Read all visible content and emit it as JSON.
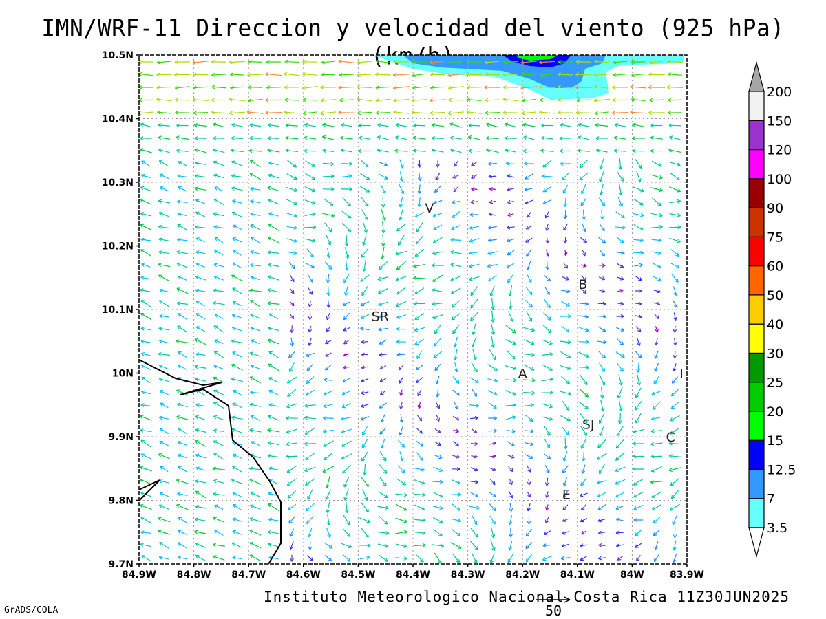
{
  "title": "IMN/WRF-11 Direccion y velocidad del viento (925 hPa)(km/h)",
  "credit": "Instituto Meteorologico Nacional Costa Rica 11Z30JUN2025",
  "software_credit": "GrADS/COLA",
  "reference_vector": {
    "value": "50"
  },
  "chart_data": {
    "type": "vector_field_map",
    "x_ticks": [
      "84.9W",
      "84.8W",
      "84.7W",
      "84.6W",
      "84.5W",
      "84.4W",
      "84.3W",
      "84.2W",
      "84.1W",
      "84W",
      "83.9W"
    ],
    "y_ticks": [
      "10.5N",
      "10.4N",
      "10.3N",
      "10.2N",
      "10.1N",
      "10N",
      "9.9N",
      "9.8N",
      "9.7N"
    ],
    "xlim": [
      -84.9,
      -83.9
    ],
    "ylim": [
      9.7,
      10.5
    ],
    "grid": true,
    "places": [
      {
        "label": "V",
        "lon": -84.37,
        "lat": 10.26
      },
      {
        "label": "B",
        "lon": -84.09,
        "lat": 10.14
      },
      {
        "label": "SR",
        "lon": -84.46,
        "lat": 10.09
      },
      {
        "label": "A",
        "lon": -84.2,
        "lat": 10.0
      },
      {
        "label": "I",
        "lon": -83.91,
        "lat": 10.0
      },
      {
        "label": "SJ",
        "lon": -84.08,
        "lat": 9.92
      },
      {
        "label": "C",
        "lon": -83.93,
        "lat": 9.9
      },
      {
        "label": "E",
        "lon": -84.12,
        "lat": 9.81
      }
    ],
    "colorbar": {
      "levels": [
        "3.5",
        "7",
        "12.5",
        "15",
        "20",
        "25",
        "30",
        "40",
        "50",
        "60",
        "75",
        "90",
        "100",
        "120",
        "150",
        "200"
      ],
      "colors": [
        "#66ffff",
        "#3399ff",
        "#0000ff",
        "#00ff00",
        "#00cc00",
        "#009900",
        "#ffff00",
        "#ffcc00",
        "#ff6600",
        "#ff0000",
        "#cc3300",
        "#990000",
        "#ff00ff",
        "#9933cc",
        "#f2f2f2",
        "#a6a6a6"
      ]
    }
  }
}
